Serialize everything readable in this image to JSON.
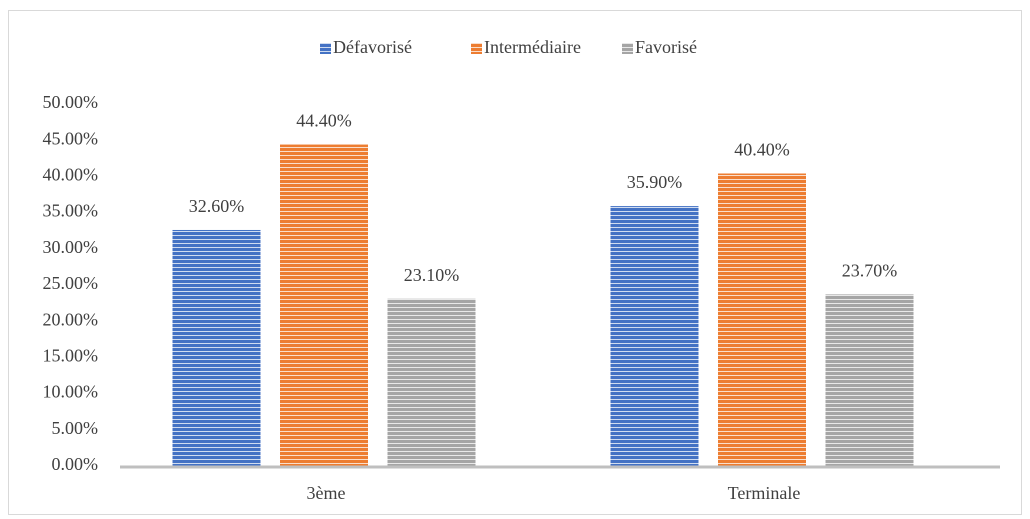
{
  "chart_data": {
    "type": "bar",
    "categories": [
      "3ème",
      "Terminale"
    ],
    "series": [
      {
        "name": "Défavorisé",
        "color": "#4472c4",
        "values": [
          32.6,
          35.9
        ],
        "value_labels": [
          "32.60%",
          "35.90%"
        ]
      },
      {
        "name": "Intermédiaire",
        "color": "#ed7d31",
        "values": [
          44.4,
          40.4
        ],
        "value_labels": [
          "44.40%",
          "40.40%"
        ]
      },
      {
        "name": "Favorisé",
        "color": "#a5a5a5",
        "values": [
          23.1,
          23.7
        ],
        "value_labels": [
          "23.10%",
          "23.70%"
        ]
      }
    ],
    "ylim": [
      0,
      50
    ],
    "yticks": [
      {
        "value": 0,
        "label": "0.00%"
      },
      {
        "value": 5,
        "label": "5.00%"
      },
      {
        "value": 10,
        "label": "10.00%"
      },
      {
        "value": 15,
        "label": "15.00%"
      },
      {
        "value": 20,
        "label": "20.00%"
      },
      {
        "value": 25,
        "label": "25.00%"
      },
      {
        "value": 30,
        "label": "30.00%"
      },
      {
        "value": 35,
        "label": "35.00%"
      },
      {
        "value": 40,
        "label": "40.00%"
      },
      {
        "value": 45,
        "label": "45.00%"
      },
      {
        "value": 50,
        "label": "50.00%"
      }
    ],
    "legend": "top",
    "grid": false
  }
}
